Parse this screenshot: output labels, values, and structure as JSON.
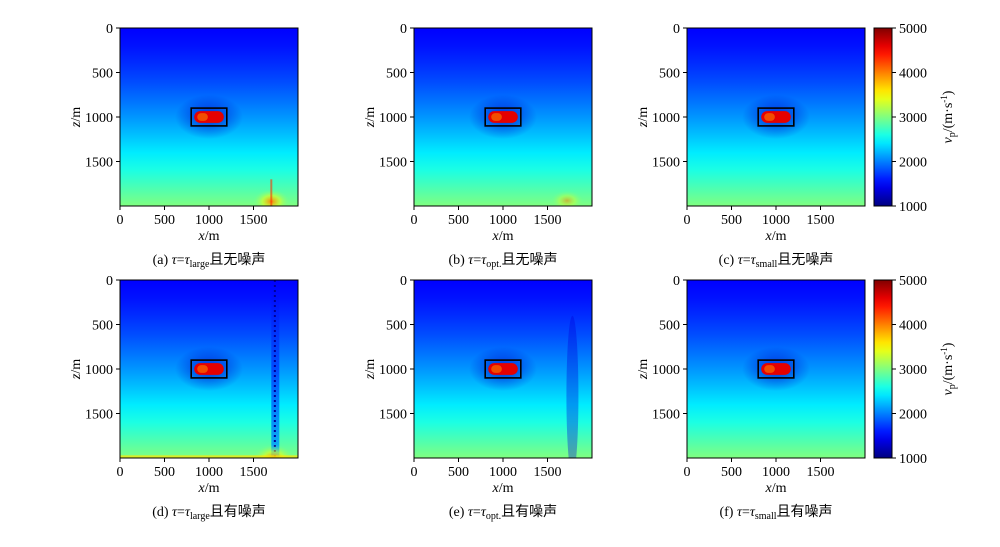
{
  "chart_data": {
    "type": "heatmap",
    "panels": [
      {
        "id": "a",
        "caption_prefix": "(a) ",
        "tau_sub": "large",
        "caption_suffix": "且无噪声",
        "noise": false,
        "artifact": "large"
      },
      {
        "id": "b",
        "caption_prefix": "(b) ",
        "tau_sub": "opt.",
        "caption_suffix": "且无噪声",
        "noise": false,
        "artifact": "opt"
      },
      {
        "id": "c",
        "caption_prefix": "(c) ",
        "tau_sub": "small",
        "caption_suffix": "且无噪声",
        "noise": false,
        "artifact": "small"
      },
      {
        "id": "d",
        "caption_prefix": "(d) ",
        "tau_sub": "large",
        "caption_suffix": "且有噪声",
        "noise": true,
        "artifact": "large"
      },
      {
        "id": "e",
        "caption_prefix": "(e) ",
        "tau_sub": "opt.",
        "caption_suffix": "且有噪声",
        "noise": true,
        "artifact": "opt"
      },
      {
        "id": "f",
        "caption_prefix": "(f) ",
        "tau_sub": "small",
        "caption_suffix": "且有噪声",
        "noise": true,
        "artifact": "small"
      }
    ],
    "tau_symbol": "τ",
    "equals": "=",
    "x_axis": {
      "label_var": "x",
      "label_unit": "/m",
      "range": [
        0,
        2000
      ],
      "ticks": [
        0,
        500,
        1000,
        1500
      ]
    },
    "z_axis": {
      "label_var": "z",
      "label_unit": "/m",
      "range": [
        0,
        2000
      ],
      "ticks": [
        0,
        500,
        1000,
        1500
      ],
      "inverted": true
    },
    "anomaly_box": {
      "x": [
        800,
        1200
      ],
      "z": [
        900,
        1100
      ]
    },
    "colorbar": {
      "label_var": "v",
      "label_sub": "p",
      "label_unit": "/(m·s",
      "label_sup": "-1",
      "label_close": ")",
      "range": [
        1000,
        5000
      ],
      "ticks": [
        1000,
        2000,
        3000,
        4000,
        5000
      ],
      "colormap": "jet"
    },
    "background_velocity": {
      "top": 1500,
      "bottom": 3000
    },
    "anomaly_velocity": 4600,
    "grid": false
  }
}
